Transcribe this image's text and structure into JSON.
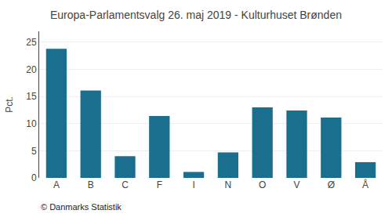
{
  "chart_data": {
    "type": "bar",
    "title": "Europa-Parlamentsvalg 26. maj 2019 - Kulturhuset Brønden",
    "ylabel": "Pct.",
    "annotations": [
      "© Danmarks Statistik"
    ],
    "categories": [
      "A",
      "B",
      "C",
      "F",
      "I",
      "N",
      "O",
      "V",
      "Ø",
      "Å"
    ],
    "values": [
      23.8,
      16.1,
      4.0,
      11.4,
      1.1,
      4.7,
      13.0,
      12.4,
      11.1,
      2.9
    ],
    "color": "#1a6e8e",
    "ylim": [
      0,
      27
    ],
    "yticks": [
      0,
      5,
      10,
      15,
      20,
      25
    ],
    "grid": true
  }
}
